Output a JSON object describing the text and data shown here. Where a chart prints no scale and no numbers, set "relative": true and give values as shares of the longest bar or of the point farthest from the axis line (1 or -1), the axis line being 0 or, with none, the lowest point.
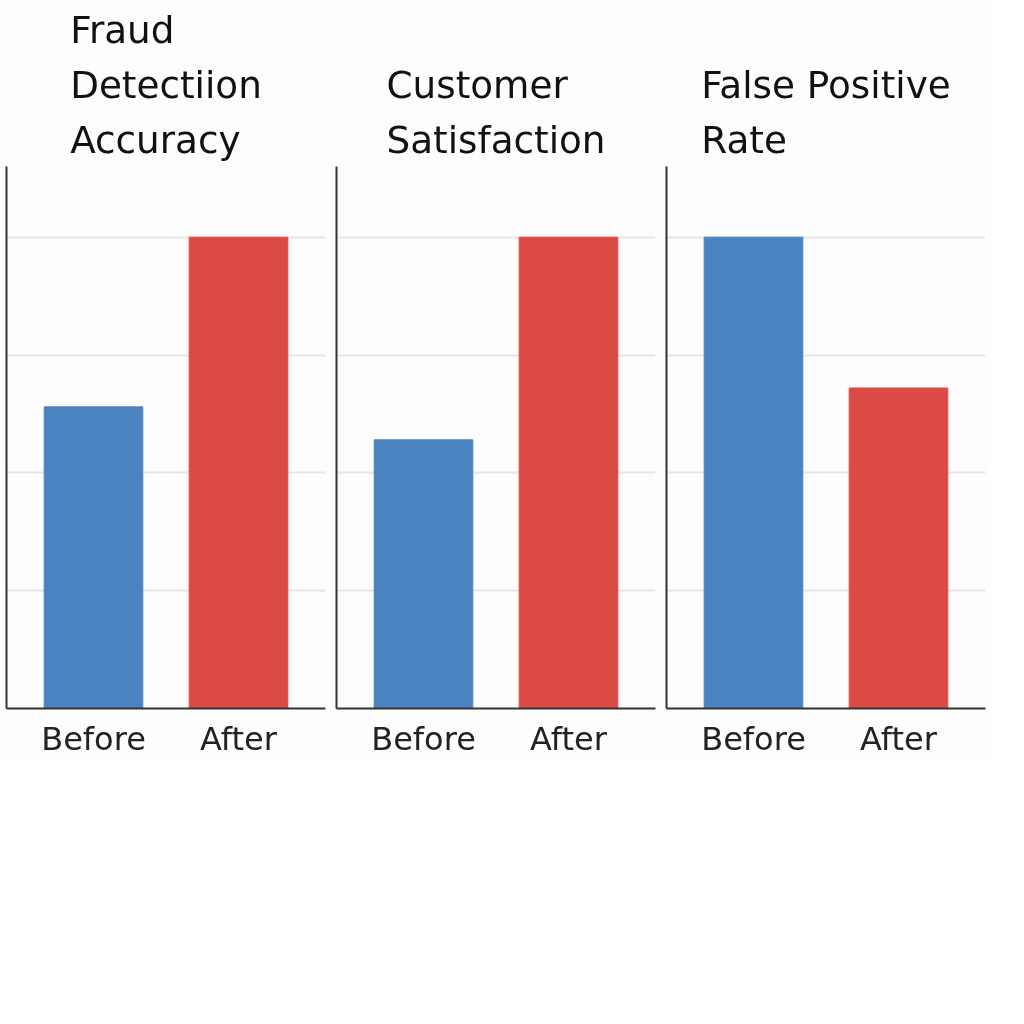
{
  "chart_data": [
    {
      "type": "bar",
      "title": "Fraud Detectiion Accuracy",
      "categories": [
        "Before",
        "After"
      ],
      "values": [
        0.64,
        1
      ],
      "colors": [
        "#4a83bf",
        "#dc4a45"
      ],
      "relative": true,
      "grid": "y"
    },
    {
      "type": "bar",
      "title": "Customer Satisfaction",
      "categories": [
        "Before",
        "After"
      ],
      "values": [
        0.57,
        1
      ],
      "colors": [
        "#4a83bf",
        "#dc4a45"
      ],
      "relative": true,
      "grid": "y"
    },
    {
      "type": "bar",
      "title": "False Positive Rate",
      "categories": [
        "Before",
        "After"
      ],
      "values": [
        1,
        0.68
      ],
      "colors": [
        "#4a83bf",
        "#dc4a45"
      ],
      "relative": true,
      "grid": "y"
    }
  ]
}
